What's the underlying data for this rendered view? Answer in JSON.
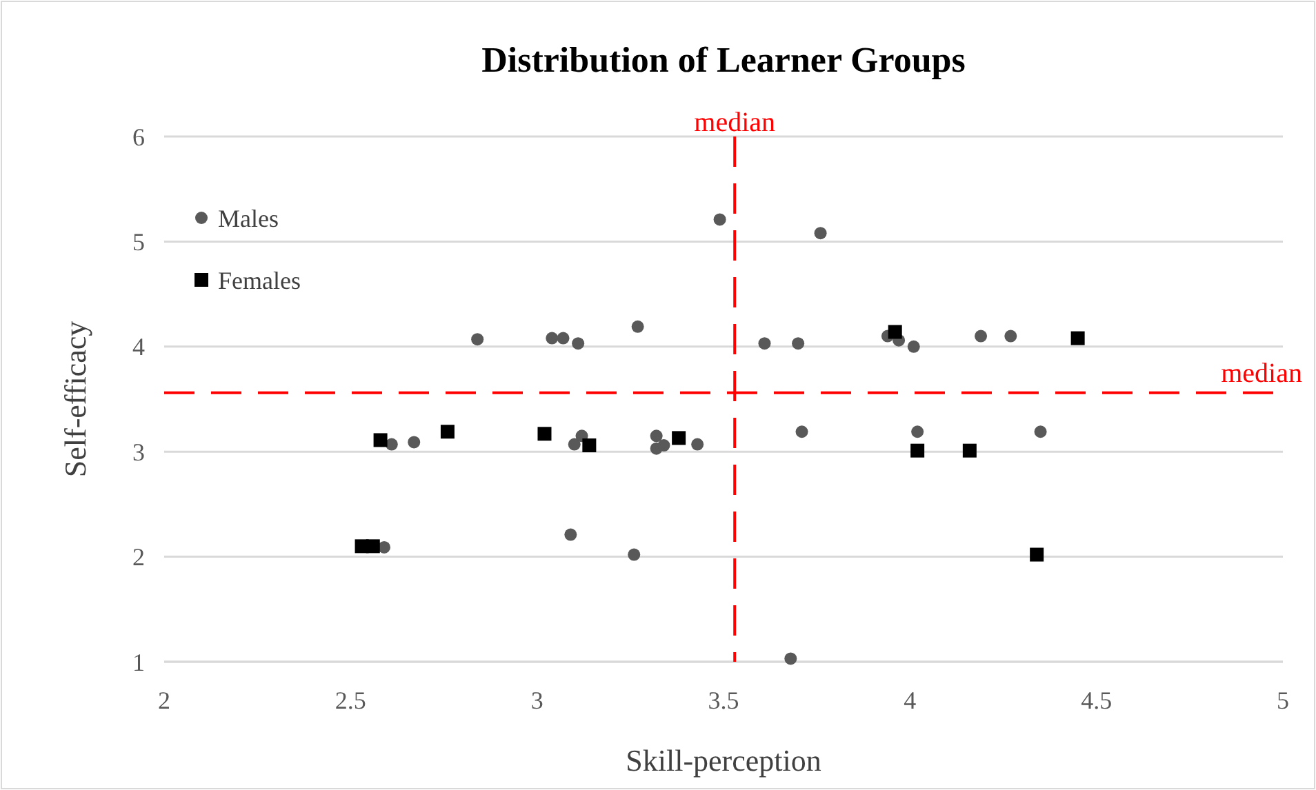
{
  "chart_data": {
    "type": "scatter",
    "title": "Distribution of Learner Groups",
    "xlabel": "Skill-perception",
    "ylabel": "Self-efficacy",
    "xlim": [
      2,
      5
    ],
    "xticks": [
      2,
      2.5,
      3,
      3.5,
      4,
      4.5,
      5
    ],
    "ylim": [
      1,
      6
    ],
    "yticks": [
      1,
      2,
      3,
      4,
      5,
      6
    ],
    "grid": "y",
    "legend": "top left",
    "series": [
      {
        "name": "Males",
        "color": "#595959",
        "marker": "circle",
        "x": [
          3.49,
          3.76,
          2.84,
          3.04,
          3.07,
          3.11,
          3.27,
          3.61,
          3.7,
          3.94,
          3.97,
          4.01,
          4.19,
          4.27,
          2.61,
          2.67,
          3.1,
          3.12,
          3.32,
          3.32,
          3.34,
          3.43,
          3.71,
          4.02,
          4.35,
          3.09,
          3.26,
          2.59,
          3.68
        ],
        "values": [
          5.21,
          5.08,
          4.07,
          4.08,
          4.08,
          4.03,
          4.19,
          4.03,
          4.03,
          4.1,
          4.06,
          4,
          4.1,
          4.1,
          3.07,
          3.09,
          3.07,
          3.15,
          3.15,
          3.03,
          3.06,
          3.07,
          3.19,
          3.19,
          3.19,
          2.21,
          2.02,
          2.09,
          1.03
        ]
      },
      {
        "name": "Females",
        "color": "#000000",
        "marker": "square",
        "x": [
          2.58,
          2.76,
          3.02,
          3.14,
          3.38,
          2.53,
          2.56,
          3.96,
          4.45,
          4.02,
          4.16,
          4.34
        ],
        "values": [
          3.11,
          3.19,
          3.17,
          3.06,
          3.13,
          2.1,
          2.1,
          4.14,
          4.08,
          3.01,
          3.01,
          2.02
        ]
      }
    ],
    "ref_lines": [
      {
        "axis": "x",
        "value": 3.53,
        "label": "median",
        "color": "#ff0000",
        "line_style": "dashed"
      },
      {
        "axis": "y",
        "value": 3.56,
        "label": "median",
        "color": "#ff0000",
        "line_style": "dashed"
      }
    ]
  }
}
